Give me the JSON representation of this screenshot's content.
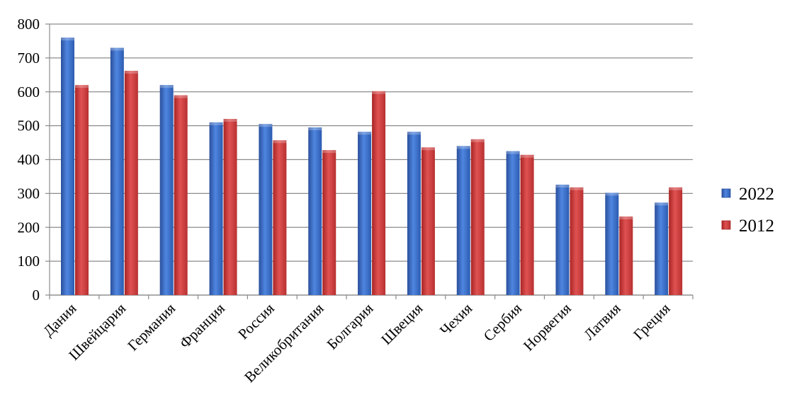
{
  "chart_data": {
    "type": "bar",
    "categories": [
      "Дания",
      "Швейцария",
      "Германия",
      "Франция",
      "Россия",
      "Великобритания",
      "Болгария",
      "Швеция",
      "Чехия",
      "Сербия",
      "Норвегия",
      "Латвия",
      "Греция"
    ],
    "series": [
      {
        "name": "2022",
        "color": "#3366cc",
        "values": [
          760,
          730,
          620,
          510,
          505,
          495,
          482,
          482,
          440,
          425,
          326,
          302,
          273
        ]
      },
      {
        "name": "2012",
        "color": "#cc3333",
        "values": [
          620,
          662,
          590,
          520,
          457,
          428,
          602,
          436,
          460,
          414,
          318,
          232,
          318
        ]
      }
    ],
    "ylim": [
      0,
      800
    ],
    "yticks": [
      "0",
      "100",
      "200",
      "300",
      "400",
      "500",
      "600",
      "700",
      "800"
    ],
    "grid": true,
    "legend": "right",
    "title": "",
    "xlabel": "",
    "ylabel": ""
  }
}
